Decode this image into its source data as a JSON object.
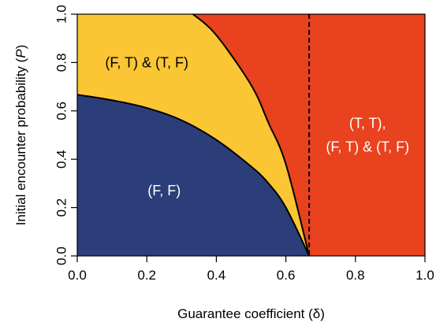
{
  "chart_data": {
    "type": "area",
    "title": "",
    "xlabel": "Guarantee coefficient (δ)",
    "ylabel_parts": [
      "Initial encounter probability (",
      "P",
      ")"
    ],
    "xlim": [
      0,
      1
    ],
    "ylim": [
      0,
      1
    ],
    "x_ticks": [
      "0.0",
      "0.2",
      "0.4",
      "0.6",
      "0.8",
      "1.0"
    ],
    "y_ticks": [
      "0.0",
      "0.2",
      "0.4",
      "0.6",
      "0.8",
      "1.0"
    ],
    "grid": false,
    "threshold": {
      "x": 0.667,
      "style": "dashed"
    },
    "boundaries": [
      {
        "id": "lower",
        "points": [
          [
            0.0,
            0.667
          ],
          [
            0.1,
            0.644
          ],
          [
            0.2,
            0.612
          ],
          [
            0.3,
            0.561
          ],
          [
            0.4,
            0.48
          ],
          [
            0.5,
            0.37
          ],
          [
            0.55,
            0.3
          ],
          [
            0.6,
            0.2
          ],
          [
            0.667,
            0.0
          ]
        ]
      },
      {
        "id": "upper",
        "points": [
          [
            0.333,
            1.0
          ],
          [
            0.4,
            0.913
          ],
          [
            0.5,
            0.707
          ],
          [
            0.55,
            0.55
          ],
          [
            0.6,
            0.379
          ],
          [
            0.667,
            0.0
          ]
        ]
      }
    ],
    "regions": [
      {
        "id": "ff",
        "color": "#2C3E7A",
        "label_lines": [
          "(F, F)"
        ],
        "label_pos": [
          0.25,
          0.27
        ],
        "text_color": "#ffffff"
      },
      {
        "id": "ft-tf",
        "color": "#FAC634",
        "label_lines": [
          "(F, T) & (T, F)"
        ],
        "label_pos": [
          0.2,
          0.8
        ],
        "text_color": "#000000"
      },
      {
        "id": "tt",
        "color": "#E8421E",
        "label_lines": [
          "(T, T),",
          "(F, T) & (T, F)"
        ],
        "label_pos": [
          0.835,
          0.5
        ],
        "text_color": "#ffffff"
      }
    ]
  }
}
